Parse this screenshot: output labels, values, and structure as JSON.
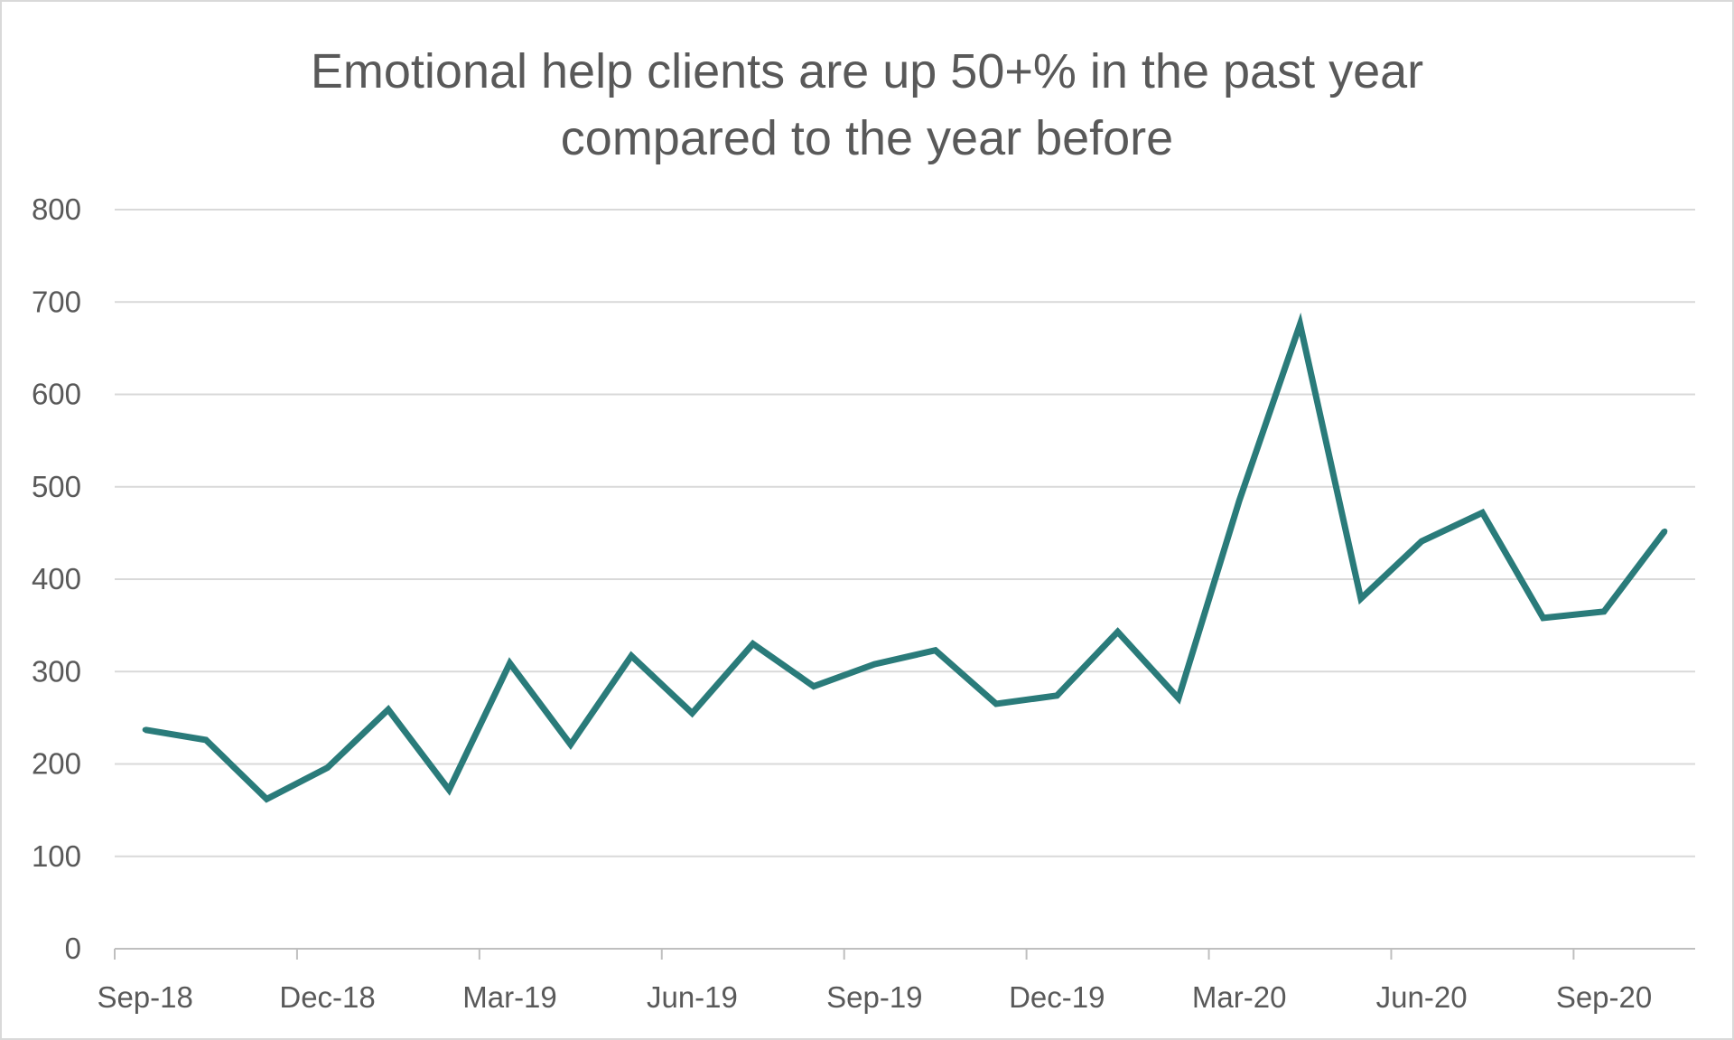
{
  "chart_data": {
    "type": "line",
    "title_lines": [
      "Emotional help clients are up 50+% in the past year",
      "compared to the year before"
    ],
    "xlabel": "",
    "ylabel": "",
    "ylim": [
      0,
      800
    ],
    "y_ticks": [
      "0",
      "100",
      "200",
      "300",
      "400",
      "500",
      "600",
      "700",
      "800"
    ],
    "x_tick_labels": [
      "Sep-18",
      "Dec-18",
      "Mar-19",
      "Jun-19",
      "Sep-19",
      "Dec-19",
      "Mar-20",
      "Jun-20",
      "Sep-20"
    ],
    "categories": [
      "Sep-18",
      "Oct-18",
      "Nov-18",
      "Dec-18",
      "Jan-19",
      "Feb-19",
      "Mar-19",
      "Apr-19",
      "May-19",
      "Jun-19",
      "Jul-19",
      "Aug-19",
      "Sep-19",
      "Oct-19",
      "Nov-19",
      "Dec-19",
      "Jan-20",
      "Feb-20",
      "Mar-20",
      "Apr-20",
      "May-20",
      "Jun-20",
      "Jul-20",
      "Aug-20",
      "Sep-20",
      "Oct-20"
    ],
    "series": [
      {
        "values": [
          237,
          226,
          162,
          196,
          259,
          172,
          309,
          221,
          317,
          255,
          330,
          284,
          308,
          323,
          265,
          274,
          343,
          271,
          485,
          676,
          379,
          441,
          472,
          358,
          365,
          452
        ],
        "color": "#2a7b7a"
      }
    ],
    "grid": true,
    "legend": "none"
  }
}
